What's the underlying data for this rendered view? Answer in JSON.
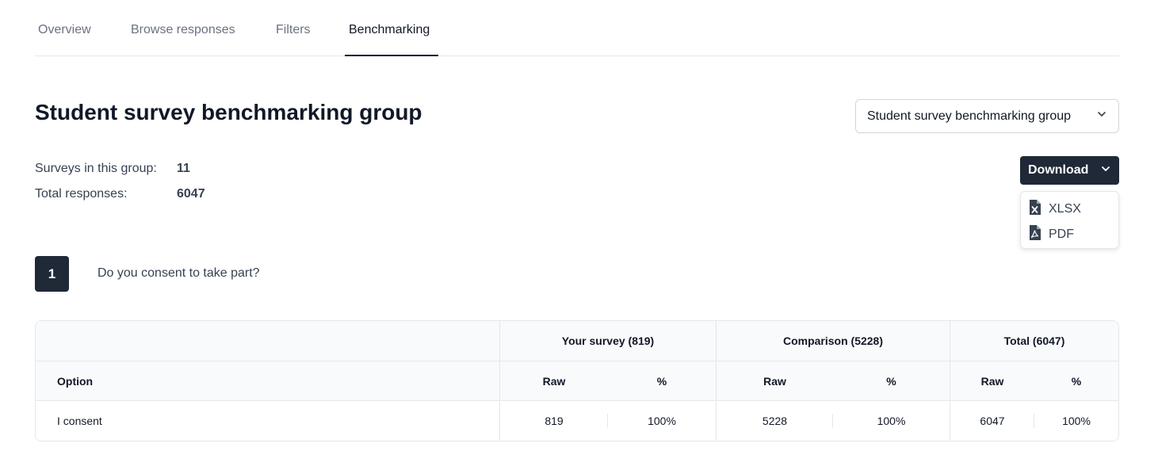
{
  "tabs": [
    {
      "label": "Overview",
      "active": false
    },
    {
      "label": "Browse responses",
      "active": false
    },
    {
      "label": "Filters",
      "active": false
    },
    {
      "label": "Benchmarking",
      "active": true
    }
  ],
  "page": {
    "title": "Student survey benchmarking group"
  },
  "group_select": {
    "value": "Student survey benchmarking group",
    "icon": "chevron-down-icon"
  },
  "stats": {
    "surveys_label": "Surveys in this group:",
    "surveys_value": "11",
    "responses_label": "Total responses:",
    "responses_value": "6047"
  },
  "download": {
    "label": "Download",
    "icon": "chevron-down-icon",
    "options": [
      {
        "label": "XLSX",
        "icon": "file-excel-icon"
      },
      {
        "label": "PDF",
        "icon": "file-pdf-icon"
      }
    ]
  },
  "question": {
    "number": "1",
    "text": "Do you consent to take part?"
  },
  "table": {
    "group_headers": [
      "Your survey (819)",
      "Comparison (5228)",
      "Total (6047)"
    ],
    "option_header": "Option",
    "raw_header": "Raw",
    "pct_header": "%",
    "rows": [
      {
        "option": "I consent",
        "your_raw": "819",
        "your_pct": "100%",
        "comp_raw": "5228",
        "comp_pct": "100%",
        "total_raw": "6047",
        "total_pct": "100%"
      }
    ]
  }
}
